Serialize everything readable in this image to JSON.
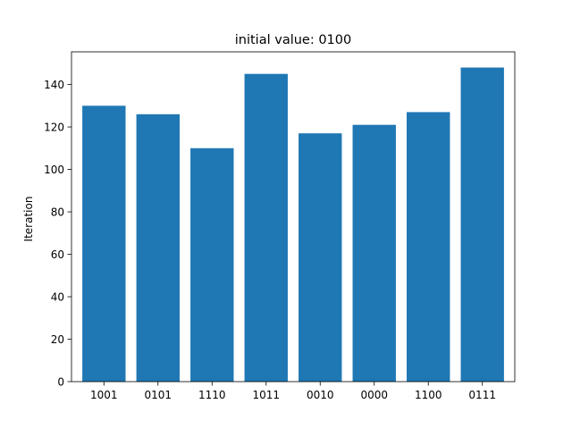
{
  "chart_data": {
    "type": "bar",
    "title": "initial value: 0100",
    "xlabel": "",
    "ylabel": "Iteration",
    "categories": [
      "1001",
      "0101",
      "1110",
      "1011",
      "0010",
      "0000",
      "1100",
      "0111"
    ],
    "values": [
      130,
      126,
      110,
      145,
      117,
      121,
      127,
      148
    ],
    "ylim": [
      0,
      155.4
    ],
    "yticks": [
      0,
      20,
      40,
      60,
      80,
      100,
      120,
      140
    ],
    "grid": false,
    "legend": "none",
    "bar_color": "#1f77b4"
  }
}
